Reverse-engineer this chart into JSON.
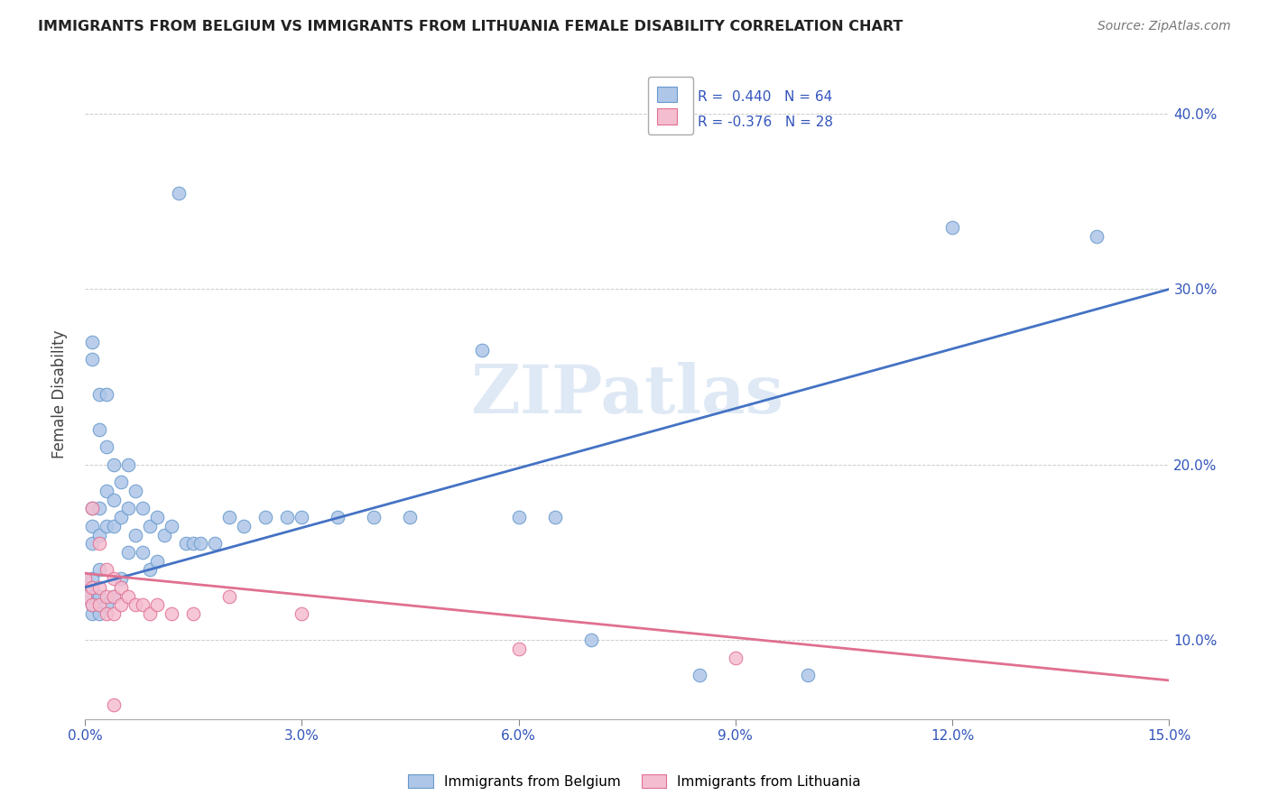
{
  "title": "IMMIGRANTS FROM BELGIUM VS IMMIGRANTS FROM LITHUANIA FEMALE DISABILITY CORRELATION CHART",
  "source": "Source: ZipAtlas.com",
  "ylabel": "Female Disability",
  "xlim": [
    0.0,
    0.15
  ],
  "ylim": [
    0.055,
    0.425
  ],
  "xticks": [
    0.0,
    0.03,
    0.06,
    0.09,
    0.12,
    0.15
  ],
  "yticks": [
    0.1,
    0.2,
    0.3,
    0.4
  ],
  "belgium_color": "#aec6e8",
  "belgium_edge": "#6699cc",
  "lithuania_color": "#f5bdd0",
  "lithuania_edge": "#e07090",
  "trend_belgium": "#4472c4",
  "trend_lithuania": "#e07090",
  "watermark": "ZIPatlas",
  "bel_trend_x0": 0.0,
  "bel_trend_y0": 0.13,
  "bel_trend_x1": 0.15,
  "bel_trend_y1": 0.3,
  "lit_trend_x0": 0.0,
  "lit_trend_y0": 0.138,
  "lit_trend_x1": 0.15,
  "lit_trend_y1": 0.077,
  "belgium_x": [
    0.001,
    0.001,
    0.001,
    0.001,
    0.001,
    0.001,
    0.001,
    0.001,
    0.002,
    0.002,
    0.002,
    0.002,
    0.002,
    0.002,
    0.003,
    0.003,
    0.003,
    0.003,
    0.003,
    0.004,
    0.004,
    0.004,
    0.004,
    0.005,
    0.005,
    0.005,
    0.006,
    0.006,
    0.006,
    0.007,
    0.007,
    0.008,
    0.008,
    0.009,
    0.009,
    0.01,
    0.01,
    0.011,
    0.012,
    0.013,
    0.014,
    0.015,
    0.016,
    0.018,
    0.02,
    0.022,
    0.025,
    0.028,
    0.03,
    0.035,
    0.04,
    0.045,
    0.055,
    0.06,
    0.065,
    0.07,
    0.085,
    0.1,
    0.12,
    0.14,
    0.0,
    0.0,
    0.001,
    0.002
  ],
  "belgium_y": [
    0.27,
    0.26,
    0.175,
    0.165,
    0.155,
    0.135,
    0.125,
    0.115,
    0.24,
    0.22,
    0.175,
    0.16,
    0.14,
    0.125,
    0.24,
    0.21,
    0.185,
    0.165,
    0.12,
    0.2,
    0.18,
    0.165,
    0.125,
    0.19,
    0.17,
    0.135,
    0.2,
    0.175,
    0.15,
    0.185,
    0.16,
    0.175,
    0.15,
    0.165,
    0.14,
    0.17,
    0.145,
    0.16,
    0.165,
    0.355,
    0.155,
    0.155,
    0.155,
    0.155,
    0.17,
    0.165,
    0.17,
    0.17,
    0.17,
    0.17,
    0.17,
    0.17,
    0.265,
    0.17,
    0.17,
    0.1,
    0.08,
    0.08,
    0.335,
    0.33,
    0.13,
    0.125,
    0.12,
    0.115
  ],
  "lithuania_x": [
    0.0,
    0.0,
    0.001,
    0.001,
    0.001,
    0.002,
    0.002,
    0.002,
    0.003,
    0.003,
    0.003,
    0.004,
    0.004,
    0.004,
    0.005,
    0.005,
    0.006,
    0.007,
    0.008,
    0.009,
    0.01,
    0.012,
    0.015,
    0.02,
    0.03,
    0.06,
    0.09,
    0.004
  ],
  "lithuania_y": [
    0.135,
    0.125,
    0.175,
    0.13,
    0.12,
    0.155,
    0.13,
    0.12,
    0.14,
    0.125,
    0.115,
    0.135,
    0.125,
    0.115,
    0.13,
    0.12,
    0.125,
    0.12,
    0.12,
    0.115,
    0.12,
    0.115,
    0.115,
    0.125,
    0.115,
    0.095,
    0.09,
    0.063
  ]
}
